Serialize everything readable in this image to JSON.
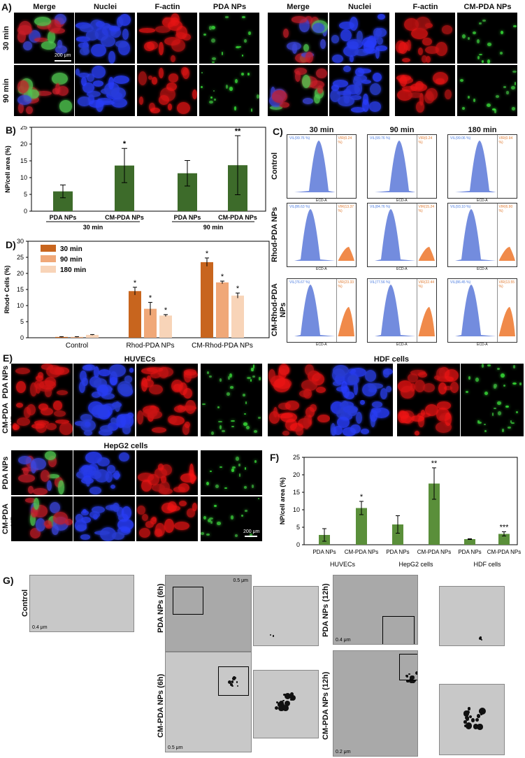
{
  "panelA": {
    "letter": "A)",
    "left_headers": [
      "Merge",
      "Nuclei",
      "F-actin",
      "PDA NPs"
    ],
    "right_headers": [
      "Merge",
      "Nuclei",
      "F-actin",
      "CM-PDA NPs"
    ],
    "rows": [
      "30 min",
      "90 min"
    ],
    "scalebar": "200 μm"
  },
  "panelB": {
    "letter": "B)",
    "ylabel": "NP/cell area (%)",
    "yticks": [
      "0",
      "5",
      "10",
      "15",
      "20",
      "25"
    ],
    "categories": [
      "PDA NPs",
      "CM-PDA NPs",
      "PDA NPs",
      "CM-PDA NPs"
    ],
    "groups": [
      "30 min",
      "90 min"
    ],
    "sig": [
      "",
      "*",
      "",
      "**"
    ]
  },
  "panelC": {
    "letter": "C)",
    "cols": [
      "30 min",
      "90 min",
      "180 min"
    ],
    "rows": [
      "Control",
      "Rhod-PDA NPs",
      "CM-Rhod-PDA NPs"
    ],
    "xaxis": "ECD-A",
    "yaxis": "Count",
    "gates": [
      [
        "VIL(99.76 %)",
        "VIR(0.24 %)"
      ],
      [
        "VIL(99.76 %)",
        "VIR(0.24 %)"
      ],
      [
        "VIL(99.06 %)",
        "VIR(0.94 %)"
      ],
      [
        "VIL(86.63 %)",
        "VIR(13.37 %)"
      ],
      [
        "VIL(84.76 %)",
        "VIR(15.24 %)"
      ],
      [
        "VIL(93.10 %)",
        "VIR(6.90 %)"
      ],
      [
        "VIL(76.67 %)",
        "VIR(23.33 %)"
      ],
      [
        "VIL(77.56 %)",
        "VIR(22.44 %)"
      ],
      [
        "VIL(86.45 %)",
        "VIR(13.55 %)"
      ]
    ]
  },
  "panelD": {
    "letter": "D)",
    "ylabel": "Rhod+ Cells (%)",
    "yticks": [
      "0",
      "5",
      "10",
      "15",
      "20",
      "25",
      "30"
    ],
    "legend": [
      "30 min",
      "90 min",
      "180 min"
    ],
    "categories": [
      "Control",
      "Rhod-PDA NPs",
      "CM-Rhod-PDA NPs"
    ]
  },
  "panelE": {
    "letter": "E)",
    "titles": [
      "HUVECs",
      "HDF cells",
      "HepG2 cells"
    ],
    "rows": [
      "PDA NPs",
      "CM-PDA NPs"
    ],
    "scalebar": "200 μm"
  },
  "panelF": {
    "letter": "F)",
    "ylabel": "NP/cell area (%)",
    "yticks": [
      "0",
      "5",
      "10",
      "15",
      "20",
      "25"
    ],
    "categories": [
      "PDA NPs",
      "CM-PDA NPs",
      "PDA NPs",
      "CM-PDA NPs",
      "PDA NPs",
      "CM-PDA NPs"
    ],
    "groups": [
      "HUVECs",
      "HepG2 cells",
      "HDF cells"
    ],
    "sig": [
      "",
      "*",
      "",
      "**",
      "",
      "***"
    ]
  },
  "panelG": {
    "letter": "G)",
    "labels": [
      "Control",
      "PDA NPs (6h)",
      "PDA NPs (12h)",
      "CM-PDA NPs (6h)",
      "CM-PDA NPs (12h)"
    ],
    "scalebars": [
      "0.4 μm",
      "0.5 μm",
      "0.4 μm",
      "0.5 μm",
      "0.2 μm"
    ]
  },
  "colors": {
    "green_bar": "#3d6b2a",
    "green_bar_f": "#5a8f3a",
    "orange_dark": "#c8651e",
    "orange_mid": "#f0a878",
    "orange_light": "#f8d4b8",
    "histo_blue": "#5a78d8",
    "histo_orange": "#f08a4a"
  },
  "chart_data": [
    {
      "type": "bar",
      "ylabel": "NP/cell area (%)",
      "ylim": [
        0,
        25
      ],
      "categories": [
        "PDA NPs (30 min)",
        "CM-PDA NPs (30 min)",
        "PDA NPs (90 min)",
        "CM-PDA NPs (90 min)"
      ],
      "values": [
        5.9,
        13.6,
        11.3,
        13.7
      ],
      "errors": [
        1.9,
        5.1,
        3.8,
        8.8
      ],
      "grid": false
    },
    {
      "type": "bar",
      "ylabel": "Rhod+ Cells (%)",
      "ylim": [
        0,
        30
      ],
      "categories": [
        "Control",
        "Rhod-PDA NPs",
        "CM-Rhod-PDA NPs"
      ],
      "series": [
        {
          "name": "30 min",
          "values": [
            0.25,
            14.5,
            23.5
          ],
          "errors": [
            0.1,
            1.2,
            1.3
          ]
        },
        {
          "name": "90 min",
          "values": [
            0.25,
            9.0,
            17.2
          ],
          "errors": [
            0.1,
            2.0,
            0.4
          ]
        },
        {
          "name": "180 min",
          "values": [
            0.9,
            6.9,
            13.1
          ],
          "errors": [
            0.1,
            0.3,
            0.8
          ]
        }
      ],
      "legend": "top-left",
      "grid": false
    },
    {
      "type": "bar",
      "ylabel": "NP/cell area (%)",
      "ylim": [
        0,
        25
      ],
      "categories": [
        "PDA NPs (HUVECs)",
        "CM-PDA NPs (HUVECs)",
        "PDA NPs (HepG2 cells)",
        "CM-PDA NPs (HepG2 cells)",
        "PDA NPs (HDF cells)",
        "CM-PDA NPs (HDF cells)"
      ],
      "values": [
        2.8,
        10.5,
        5.8,
        17.5,
        1.6,
        3.1
      ],
      "errors": [
        1.8,
        1.9,
        2.5,
        4.5,
        0.1,
        0.6
      ],
      "grid": false
    }
  ]
}
